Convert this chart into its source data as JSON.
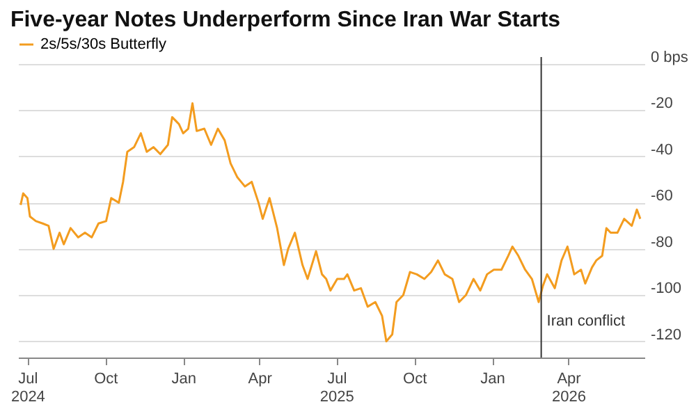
{
  "chart_data": {
    "type": "line",
    "title": "Five-year Notes Underperform Since Iran War Starts",
    "x": [
      "2024-06-23",
      "2024-06-26",
      "2024-07-01",
      "2024-07-04",
      "2024-07-11",
      "2024-07-19",
      "2024-07-26",
      "2024-08-01",
      "2024-08-08",
      "2024-08-13",
      "2024-08-21",
      "2024-08-30",
      "2024-09-07",
      "2024-09-15",
      "2024-09-23",
      "2024-10-02",
      "2024-10-08",
      "2024-10-17",
      "2024-10-22",
      "2024-10-27",
      "2024-11-04",
      "2024-11-12",
      "2024-11-19",
      "2024-11-27",
      "2024-12-05",
      "2024-12-14",
      "2024-12-19",
      "2024-12-27",
      "2025-01-01",
      "2025-01-07",
      "2025-01-12",
      "2025-01-17",
      "2025-01-26",
      "2025-02-03",
      "2025-02-11",
      "2025-02-19",
      "2025-02-26",
      "2025-03-06",
      "2025-03-15",
      "2025-03-23",
      "2025-03-31",
      "2025-04-05",
      "2025-04-13",
      "2025-04-22",
      "2025-04-30",
      "2025-05-05",
      "2025-05-13",
      "2025-05-22",
      "2025-05-28",
      "2025-06-07",
      "2025-06-14",
      "2025-06-19",
      "2025-06-24",
      "2025-07-02",
      "2025-07-10",
      "2025-07-14",
      "2025-07-22",
      "2025-07-30",
      "2025-08-07",
      "2025-08-16",
      "2025-08-24",
      "2025-08-29",
      "2025-09-05",
      "2025-09-10",
      "2025-09-18",
      "2025-09-26",
      "2025-10-04",
      "2025-10-13",
      "2025-10-21",
      "2025-10-29",
      "2025-11-06",
      "2025-11-15",
      "2025-11-23",
      "2025-12-01",
      "2025-12-10",
      "2025-12-18",
      "2025-12-26",
      "2026-01-03",
      "2026-01-12",
      "2026-01-20",
      "2026-01-25",
      "2026-02-01",
      "2026-02-09",
      "2026-02-17",
      "2026-02-25",
      "2026-03-02",
      "2026-03-07",
      "2026-03-16",
      "2026-03-24",
      "2026-03-31",
      "2026-04-08",
      "2026-04-16",
      "2026-04-21",
      "2026-04-29",
      "2026-05-04",
      "2026-05-11",
      "2026-05-16",
      "2026-05-21",
      "2026-05-29",
      "2026-06-06",
      "2026-06-15",
      "2026-06-21",
      "2026-06-25"
    ],
    "series": [
      {
        "name": "2s/5s/30s Butterfly",
        "color": "#f39c1f",
        "values": [
          -61,
          -56,
          -58,
          -66,
          -68,
          -69,
          -70,
          -80,
          -73,
          -78,
          -71,
          -75,
          -73,
          -75,
          -69,
          -68,
          -58,
          -60,
          -51,
          -38,
          -36,
          -30,
          -38,
          -36,
          -39,
          -35,
          -23,
          -26,
          -30,
          -28,
          -17,
          -29,
          -28,
          -35,
          -28,
          -33,
          -43,
          -49,
          -53,
          -51,
          -60,
          -67,
          -58,
          -71,
          -87,
          -80,
          -73,
          -87,
          -93,
          -81,
          -91,
          -93,
          -98,
          -93,
          -93,
          -91,
          -98,
          -97,
          -105,
          -103,
          -109,
          -120,
          -117,
          -103,
          -100,
          -90,
          -91,
          -93,
          -90,
          -85,
          -91,
          -93,
          -103,
          -100,
          -93,
          -98,
          -91,
          -89,
          -89,
          -83,
          -79,
          -83,
          -89,
          -93,
          -103,
          -96,
          -91,
          -97,
          -85,
          -79,
          -91,
          -89,
          -95,
          -88,
          -85,
          -83,
          -71,
          -73,
          -73,
          -67,
          -70,
          -63,
          -67
        ]
      }
    ],
    "xlim": [
      "2024-06-20",
      "2026-06-30"
    ],
    "xticks": [
      {
        "value": "2024-07-01",
        "label": "Jul\n2024"
      },
      {
        "value": "2024-10-01",
        "label": "Oct"
      },
      {
        "value": "2025-01-01",
        "label": "Jan"
      },
      {
        "value": "2025-04-01",
        "label": "Apr"
      },
      {
        "value": "2025-07-01",
        "label": "Jul\n2025"
      },
      {
        "value": "2025-10-01",
        "label": "Oct"
      },
      {
        "value": "2026-01-01",
        "label": "Jan"
      },
      {
        "value": "2026-04-01",
        "label": "Apr\n2026"
      }
    ],
    "ylim": [
      -127,
      3
    ],
    "yticks": [
      {
        "value": 0,
        "label": "0 bps"
      },
      -20,
      -40,
      -60,
      -80,
      -100,
      -120
    ],
    "grid": "y",
    "legend": "top left",
    "line_style": "solid",
    "marker": "none",
    "ref_lines": [
      {
        "axis": "x",
        "value": "2026-02-28",
        "label": "Iran conflict",
        "color": "#333333"
      }
    ]
  }
}
